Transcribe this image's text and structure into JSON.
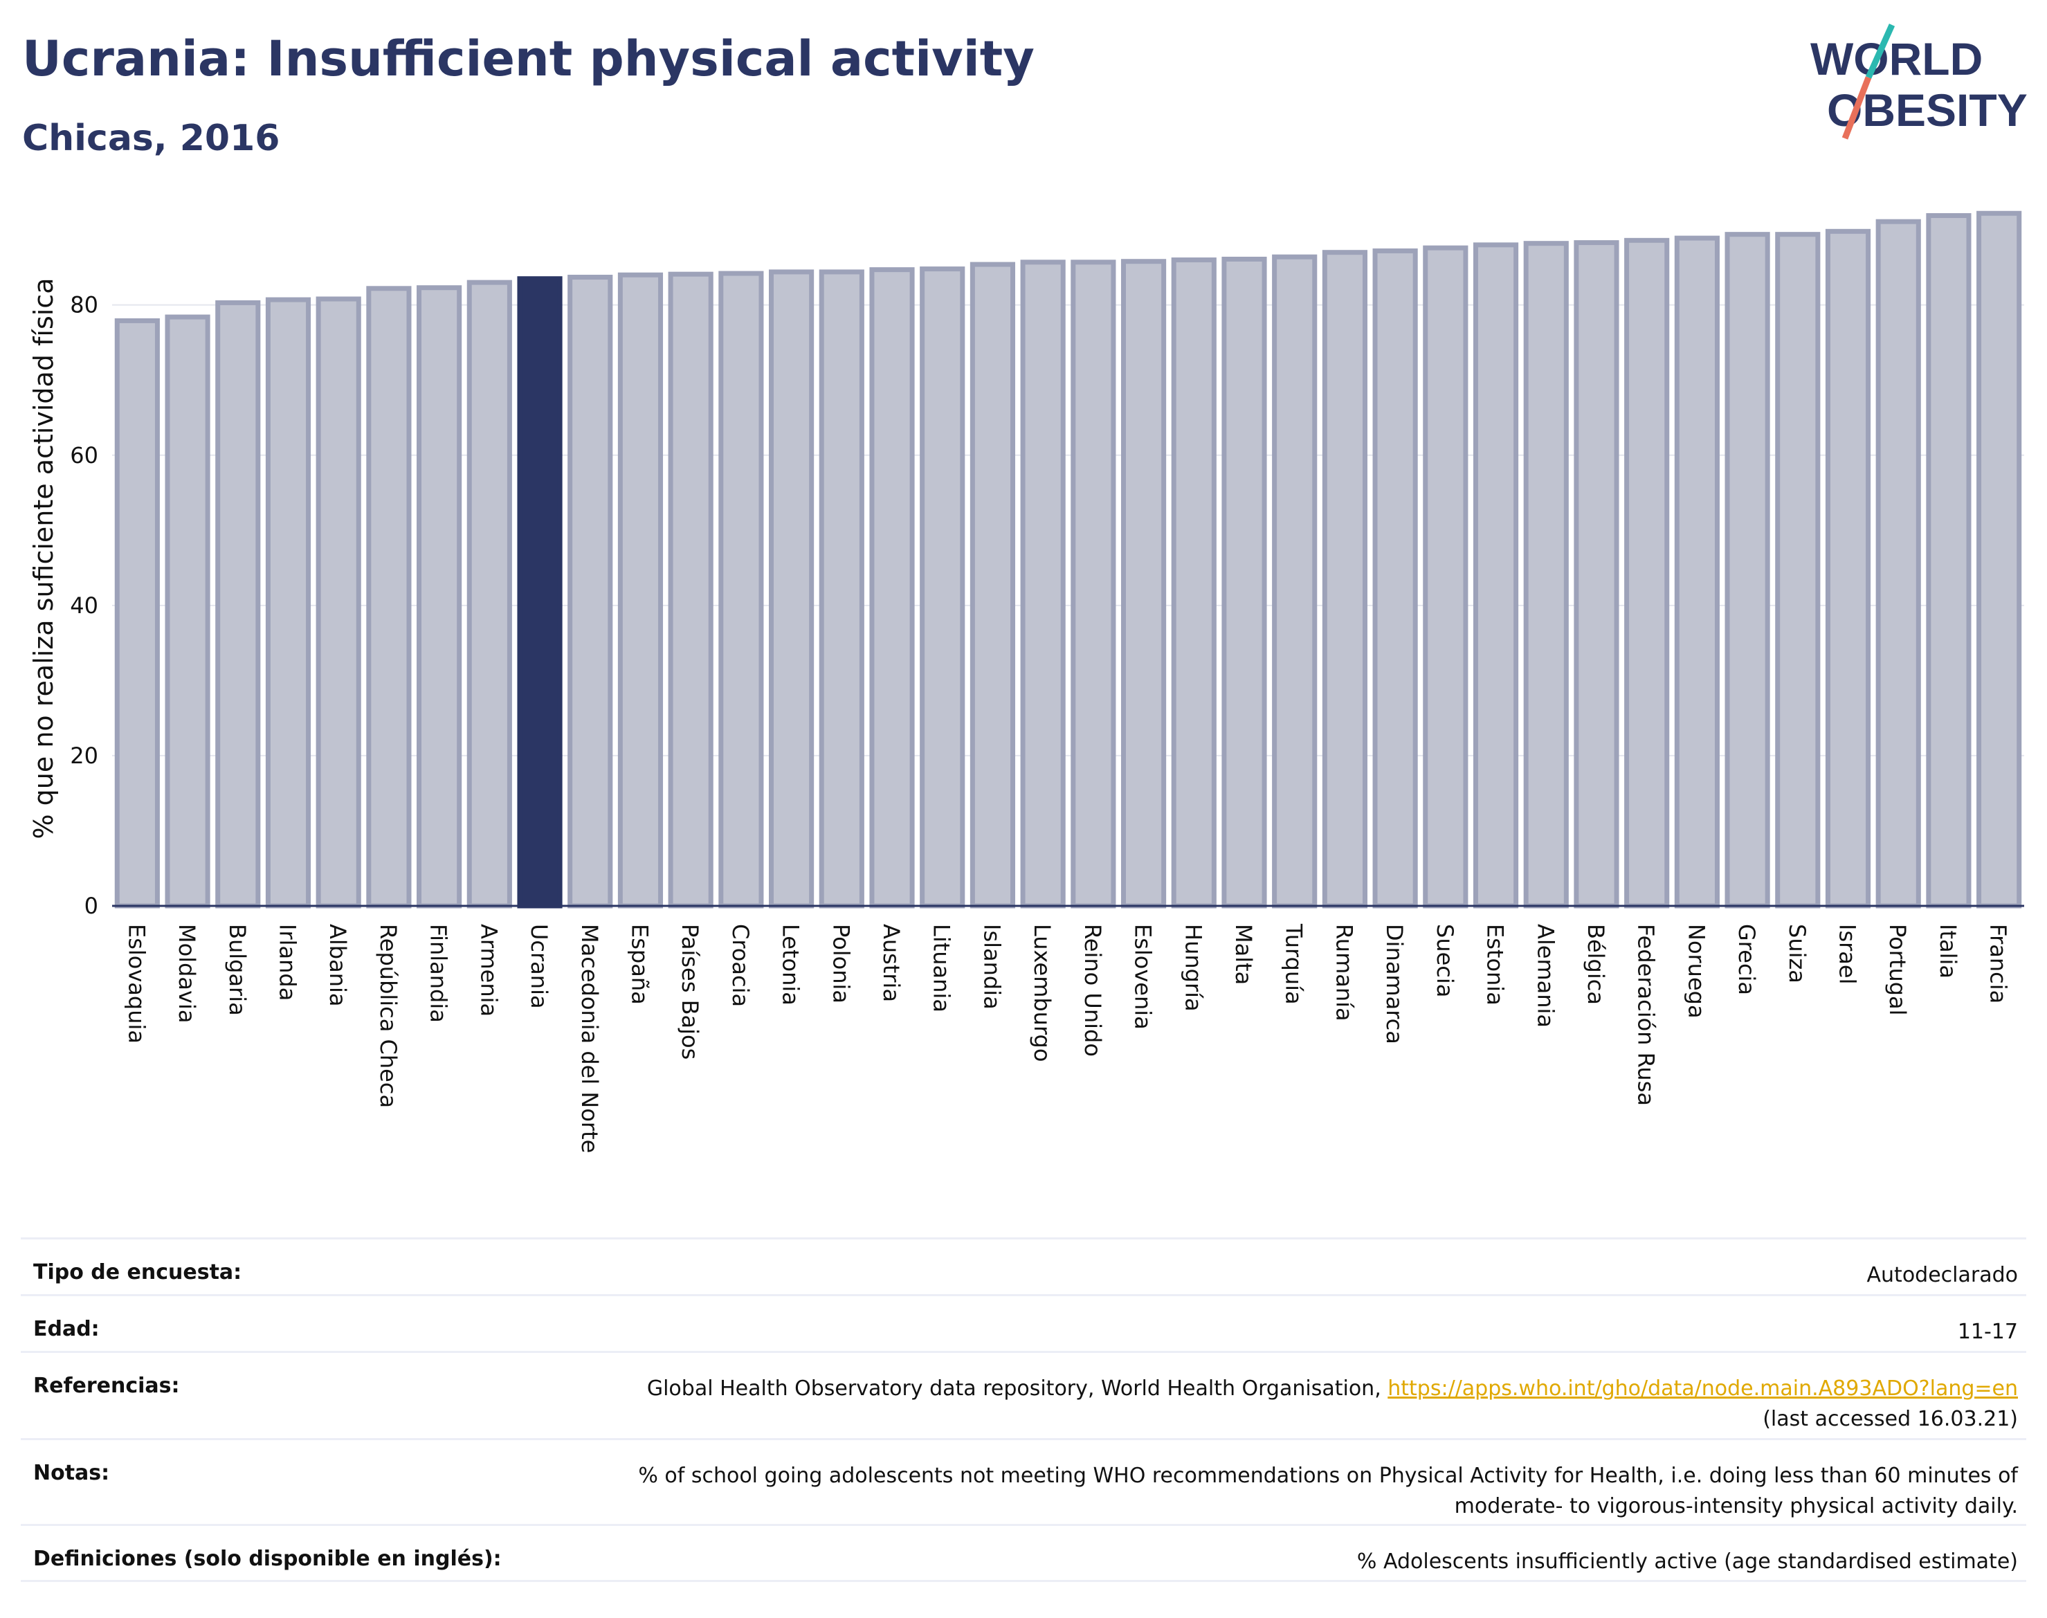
{
  "header": {
    "title": "Ucrania: Insufficient physical activity",
    "subtitle": "Chicas, 2016"
  },
  "logo": {
    "line1": "WORLD",
    "line2": "OBESITY"
  },
  "colors": {
    "bar": "#c0c3d0",
    "bar_border": "#9da2b9",
    "highlight": "#2b3664",
    "title": "#2b3664",
    "link": "#e0a800"
  },
  "chart_data": {
    "type": "bar",
    "ylabel": "% que no realiza suficiente actividad física",
    "xlabel": "",
    "ylim": [
      0,
      92.5
    ],
    "yticks": [
      0,
      20,
      40,
      60,
      80
    ],
    "grid": true,
    "highlight": "Ucrania",
    "categories": [
      "Eslovaquia",
      "Moldavia",
      "Bulgaria",
      "Irlanda",
      "Albania",
      "República Checa",
      "Finlandia",
      "Armenia",
      "Ucrania",
      "Macedonia del Norte",
      "España",
      "Países Bajos",
      "Croacia",
      "Letonia",
      "Polonia",
      "Austria",
      "Lituania",
      "Islandia",
      "Luxemburgo",
      "Reino Unido",
      "Eslovenia",
      "Hungría",
      "Malta",
      "Turquía",
      "Rumanía",
      "Dinamarca",
      "Suecia",
      "Estonia",
      "Alemania",
      "Bélgica",
      "Federación Rusa",
      "Noruega",
      "Grecia",
      "Suiza",
      "Israel",
      "Portugal",
      "Italia",
      "Francia"
    ],
    "values": [
      77.9,
      78.4,
      80.3,
      80.7,
      80.8,
      82.2,
      82.3,
      83.0,
      83.5,
      83.7,
      84.0,
      84.1,
      84.2,
      84.4,
      84.4,
      84.7,
      84.8,
      85.4,
      85.7,
      85.7,
      85.8,
      86.0,
      86.1,
      86.4,
      87.0,
      87.2,
      87.6,
      88.0,
      88.2,
      88.3,
      88.6,
      88.9,
      89.4,
      89.4,
      89.8,
      91.1,
      91.9,
      92.2
    ]
  },
  "info": {
    "survey_label": "Tipo de encuesta:",
    "survey_value": "Autodeclarado",
    "age_label": "Edad:",
    "age_value": "11-17",
    "refs_label": "Referencias:",
    "refs_text": "Global Health Observatory data repository, World Health Organisation, ",
    "refs_link": "https://apps.who.int/gho/data/node.main.A893ADO?lang=en",
    "refs_accessed": "(last accessed 16.03.21)",
    "notes_label": "Notas:",
    "notes_line1": "% of school going adolescents not meeting WHO recommendations on Physical Activity for Health, i.e. doing less than 60 minutes of",
    "notes_line2": "moderate- to vigorous-intensity physical activity daily.",
    "defs_label": "Definiciones (solo disponible en inglés):",
    "defs_value": "% Adolescents insufficiently active (age standardised estimate)"
  }
}
